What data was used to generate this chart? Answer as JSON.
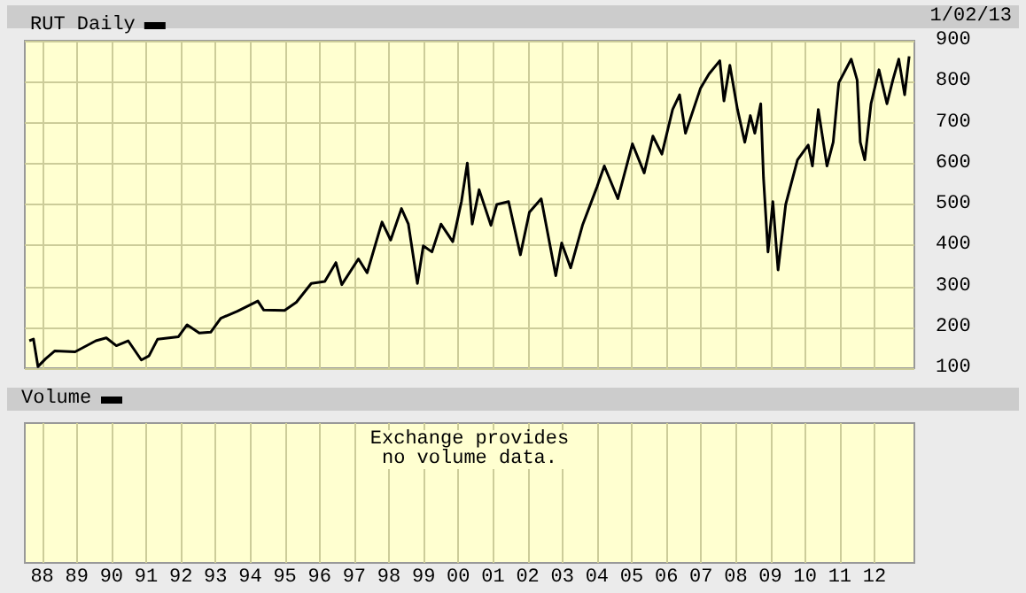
{
  "chart_data": [
    {
      "type": "line",
      "legend": "top left",
      "grid": true,
      "tick_labels": "y",
      "marker": "none",
      "line_style": "solid",
      "annotations": [
        "1/02/13"
      ],
      "xlim": [
        1987.5,
        2013.15
      ],
      "xticks": [
        {
          "value": 1988,
          "label": "88"
        },
        {
          "value": 1989,
          "label": "89"
        },
        {
          "value": 1990,
          "label": "90"
        },
        {
          "value": 1991,
          "label": "91"
        },
        {
          "value": 1992,
          "label": "92"
        },
        {
          "value": 1993,
          "label": "93"
        },
        {
          "value": 1994,
          "label": "94"
        },
        {
          "value": 1995,
          "label": "95"
        },
        {
          "value": 1996,
          "label": "96"
        },
        {
          "value": 1997,
          "label": "97"
        },
        {
          "value": 1998,
          "label": "98"
        },
        {
          "value": 1999,
          "label": "99"
        },
        {
          "value": 2000,
          "label": "00"
        },
        {
          "value": 2001,
          "label": "01"
        },
        {
          "value": 2002,
          "label": "02"
        },
        {
          "value": 2003,
          "label": "03"
        },
        {
          "value": 2004,
          "label": "04"
        },
        {
          "value": 2005,
          "label": "05"
        },
        {
          "value": 2006,
          "label": "06"
        },
        {
          "value": 2007,
          "label": "07"
        },
        {
          "value": 2008,
          "label": "08"
        },
        {
          "value": 2009,
          "label": "09"
        },
        {
          "value": 2010,
          "label": "10"
        },
        {
          "value": 2011,
          "label": "11"
        },
        {
          "value": 2012,
          "label": "12"
        }
      ],
      "ylim": [
        100,
        900
      ],
      "yticks": [
        100,
        200,
        300,
        400,
        500,
        600,
        700,
        800,
        900
      ],
      "series": [
        {
          "name": "RUT Daily",
          "color": "#000000",
          "x": [
            1987.63,
            1987.75,
            1987.88,
            1988.1,
            1988.36,
            1988.95,
            1989.55,
            1989.85,
            1990.14,
            1990.48,
            1990.86,
            1991.08,
            1991.33,
            1991.93,
            1992.18,
            1992.53,
            1992.86,
            1993.15,
            1993.63,
            1994.22,
            1994.39,
            1994.99,
            1995.33,
            1995.76,
            1996.15,
            1996.47,
            1996.64,
            1997.12,
            1997.37,
            1997.8,
            1998.05,
            1998.36,
            1998.56,
            1998.82,
            1998.99,
            1999.24,
            1999.5,
            1999.84,
            2000.09,
            2000.26,
            2000.4,
            2000.6,
            2000.94,
            2001.11,
            2001.45,
            2001.79,
            2002.05,
            2002.39,
            2002.81,
            2002.98,
            2003.24,
            2003.58,
            2004.0,
            2004.21,
            2004.6,
            2005.02,
            2005.36,
            2005.61,
            2005.87,
            2006.18,
            2006.38,
            2006.55,
            2006.98,
            2007.23,
            2007.54,
            2007.66,
            2007.83,
            2008.05,
            2008.26,
            2008.42,
            2008.55,
            2008.72,
            2008.8,
            2008.93,
            2009.07,
            2009.22,
            2009.44,
            2009.78,
            2010.09,
            2010.21,
            2010.38,
            2010.63,
            2010.81,
            2010.97,
            2011.33,
            2011.5,
            2011.59,
            2011.72,
            2011.9,
            2012.13,
            2012.36,
            2012.53,
            2012.7,
            2012.87,
            2013.0
          ],
          "values": [
            167,
            171,
            104,
            123,
            142,
            140,
            167,
            174,
            155,
            167,
            120,
            130,
            171,
            177,
            206,
            186,
            188,
            222,
            239,
            264,
            242,
            241,
            261,
            307,
            312,
            358,
            304,
            367,
            333,
            457,
            413,
            490,
            452,
            307,
            399,
            384,
            452,
            409,
            507,
            601,
            452,
            536,
            449,
            500,
            507,
            377,
            481,
            514,
            326,
            406,
            345,
            449,
            543,
            594,
            514,
            648,
            577,
            667,
            623,
            732,
            768,
            674,
            783,
            819,
            851,
            753,
            840,
            732,
            652,
            717,
            674,
            746,
            565,
            384,
            507,
            340,
            500,
            609,
            645,
            594,
            732,
            594,
            652,
            797,
            855,
            804,
            652,
            609,
            746,
            829,
            746,
            804,
            855,
            768,
            862
          ]
        }
      ]
    },
    {
      "type": "other",
      "title": "Volume",
      "annotations": [
        "Exchange provides\nno volume data."
      ]
    }
  ]
}
